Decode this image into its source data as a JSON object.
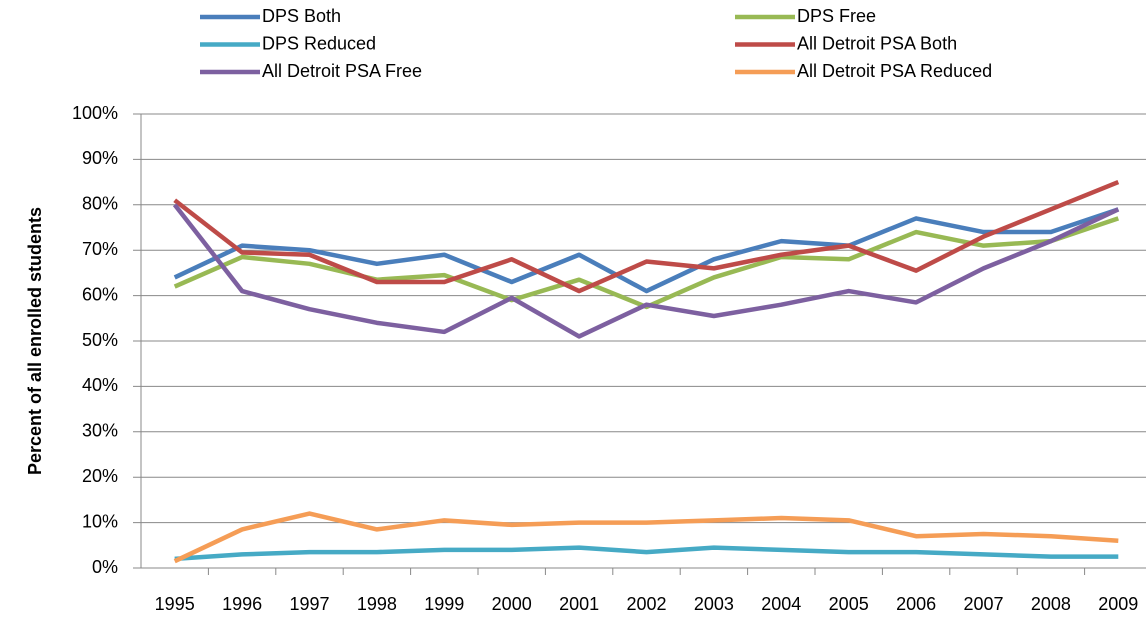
{
  "chart_data": {
    "type": "line",
    "y_label": "Percent of all enrolled students",
    "categories": [
      "1995",
      "1996",
      "1997",
      "1998",
      "1999",
      "2000",
      "2001",
      "2002",
      "2003",
      "2004",
      "2005",
      "2006",
      "2007",
      "2008",
      "2009"
    ],
    "series": [
      {
        "name": "DPS Both",
        "color": "#4a7ebb",
        "values": [
          64,
          71,
          70,
          67,
          69,
          63,
          69,
          61,
          68,
          72,
          71,
          77,
          74,
          74,
          79
        ]
      },
      {
        "name": "DPS Free",
        "color": "#98b954",
        "values": [
          62,
          68.5,
          67,
          63.5,
          64.5,
          59,
          63.5,
          57.5,
          64,
          68.5,
          68,
          74,
          71,
          72,
          77
        ]
      },
      {
        "name": "DPS Reduced",
        "color": "#46aac5",
        "values": [
          2,
          3,
          3.5,
          3.5,
          4,
          4,
          4.5,
          3.5,
          4.5,
          4,
          3.5,
          3.5,
          3,
          2.5,
          2.5
        ]
      },
      {
        "name": "All Detroit PSA Both",
        "color": "#be4b48",
        "values": [
          81,
          69.5,
          69,
          63,
          63,
          68,
          61,
          67.5,
          66,
          69,
          71,
          65.5,
          73,
          79,
          85
        ]
      },
      {
        "name": "All Detroit PSA Free",
        "color": "#7d60a0",
        "values": [
          80,
          61,
          57,
          54,
          52,
          59.5,
          51,
          58,
          55.5,
          58,
          61,
          58.5,
          66,
          72,
          79
        ]
      },
      {
        "name": "All Detroit PSA Reduced",
        "color": "#f59d56",
        "values": [
          1.5,
          8.5,
          12,
          8.5,
          10.5,
          9.5,
          10,
          10,
          10.5,
          11,
          10.5,
          7,
          7.5,
          7,
          6
        ]
      }
    ],
    "ylim": [
      0,
      100
    ],
    "yticks": [
      {
        "value": 0,
        "label": "0%"
      },
      {
        "value": 10,
        "label": "10%"
      },
      {
        "value": 20,
        "label": "20%"
      },
      {
        "value": 30,
        "label": "30%"
      },
      {
        "value": 40,
        "label": "40%"
      },
      {
        "value": 50,
        "label": "50%"
      },
      {
        "value": 60,
        "label": "60%"
      },
      {
        "value": 70,
        "label": "70%"
      },
      {
        "value": 80,
        "label": "80%"
      },
      {
        "value": 90,
        "label": "90%"
      },
      {
        "value": 100,
        "label": "100%"
      }
    ],
    "grid": true
  }
}
